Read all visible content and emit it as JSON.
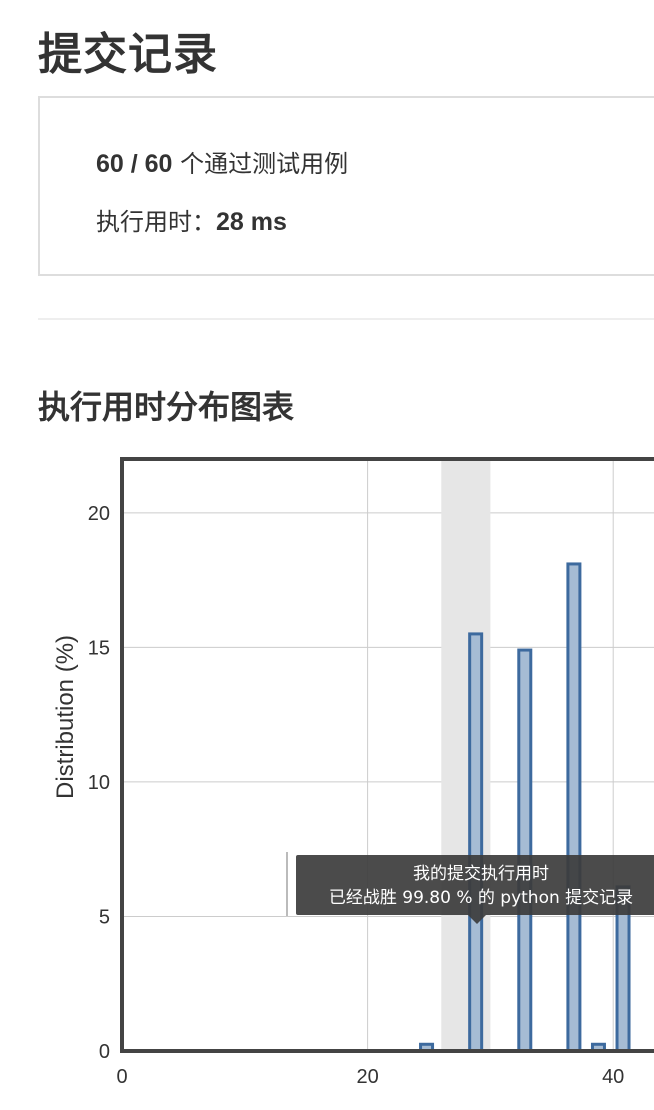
{
  "page": {
    "title": "提交记录"
  },
  "result": {
    "passed": "60 / 60",
    "passed_suffix": " 个通过测试用例",
    "runtime_label": "执行用时：",
    "runtime_value": "28 ms"
  },
  "chart_section": {
    "title": "执行用时分布图表"
  },
  "tooltip": {
    "line1": "我的提交执行用时",
    "line2": "已经战胜 99.80 % 的 python 提交记录"
  },
  "colors": {
    "bar_fill": "#a6bcd4",
    "bar_stroke": "#3d6a9e",
    "highlight_band": "#e6e6e6",
    "axis": "#444444",
    "grid": "#cccccc"
  },
  "chart_data": {
    "type": "bar",
    "xlabel": "",
    "ylabel": "Distribution (%)",
    "xlim": [
      0,
      44
    ],
    "ylim": [
      0,
      22
    ],
    "x_ticks": [
      "0",
      "20",
      "40"
    ],
    "y_ticks": [
      "0",
      "5",
      "10",
      "15",
      "20"
    ],
    "highlight_range": [
      26,
      30
    ],
    "series": [
      {
        "x": [
          24.8,
          28.8,
          32.8,
          36.8,
          38.8,
          40.8
        ],
        "values": [
          0.25,
          15.5,
          14.9,
          18.1,
          0.25,
          6.1
        ]
      }
    ]
  }
}
